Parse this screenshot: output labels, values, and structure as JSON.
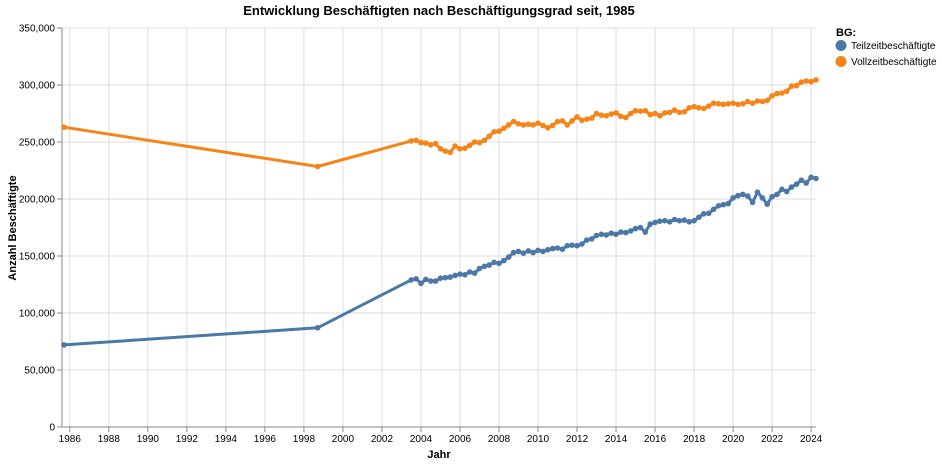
{
  "chart_data": {
    "type": "line",
    "title": "Entwicklung Beschäftigten nach Beschäftigungsgrad seit, 1985",
    "xlabel": "Jahr",
    "ylabel": "Anzahl Beschäftigte",
    "xlim": [
      1985.6,
      2024.25
    ],
    "ylim": [
      0,
      350000
    ],
    "x_ticks": [
      1986,
      1988,
      1990,
      1992,
      1994,
      1996,
      1998,
      2000,
      2002,
      2004,
      2006,
      2008,
      2010,
      2012,
      2014,
      2016,
      2018,
      2020,
      2022,
      2024
    ],
    "y_ticks": [
      0,
      50000,
      100000,
      150000,
      200000,
      250000,
      300000,
      350000
    ],
    "y_tick_labels": [
      "0",
      "50,000",
      "100,000",
      "150,000",
      "200,000",
      "250,000",
      "300,000",
      "350,000"
    ],
    "grid": true,
    "legend": {
      "title": "BG:",
      "position": "right"
    },
    "series": [
      {
        "name": "Teilzeitbeschäftigte",
        "color": "#4c78a8",
        "points": [
          [
            1985.7,
            72000
          ],
          [
            1998.7,
            87000
          ],
          [
            2003.5,
            129000
          ],
          [
            2003.75,
            130000
          ],
          [
            2004.0,
            126000
          ],
          [
            2004.25,
            129500
          ],
          [
            2004.5,
            128000
          ],
          [
            2004.75,
            128000
          ],
          [
            2005.0,
            130500
          ],
          [
            2005.25,
            131000
          ],
          [
            2005.5,
            131500
          ],
          [
            2005.75,
            133000
          ],
          [
            2006.0,
            134000
          ],
          [
            2006.25,
            133500
          ],
          [
            2006.5,
            136000
          ],
          [
            2006.75,
            135000
          ],
          [
            2007.0,
            139000
          ],
          [
            2007.25,
            141000
          ],
          [
            2007.5,
            142000
          ],
          [
            2007.75,
            144500
          ],
          [
            2008.0,
            143500
          ],
          [
            2008.25,
            146000
          ],
          [
            2008.5,
            149000
          ],
          [
            2008.75,
            153000
          ],
          [
            2009.0,
            154000
          ],
          [
            2009.25,
            152500
          ],
          [
            2009.5,
            154500
          ],
          [
            2009.75,
            153000
          ],
          [
            2010.0,
            155000
          ],
          [
            2010.25,
            154000
          ],
          [
            2010.5,
            155500
          ],
          [
            2010.75,
            156500
          ],
          [
            2011.0,
            157000
          ],
          [
            2011.25,
            156000
          ],
          [
            2011.5,
            159000
          ],
          [
            2011.75,
            159500
          ],
          [
            2012.0,
            159000
          ],
          [
            2012.25,
            160500
          ],
          [
            2012.5,
            164000
          ],
          [
            2012.75,
            165000
          ],
          [
            2013.0,
            168000
          ],
          [
            2013.25,
            169000
          ],
          [
            2013.5,
            168500
          ],
          [
            2013.75,
            170000
          ],
          [
            2014.0,
            169000
          ],
          [
            2014.25,
            171000
          ],
          [
            2014.5,
            170500
          ],
          [
            2014.75,
            172000
          ],
          [
            2015.0,
            174000
          ],
          [
            2015.25,
            175000
          ],
          [
            2015.5,
            171000
          ],
          [
            2015.75,
            178000
          ],
          [
            2016.0,
            179500
          ],
          [
            2016.25,
            180500
          ],
          [
            2016.5,
            181000
          ],
          [
            2016.75,
            180000
          ],
          [
            2017.0,
            182000
          ],
          [
            2017.25,
            181000
          ],
          [
            2017.5,
            181500
          ],
          [
            2017.75,
            180000
          ],
          [
            2018.0,
            181000
          ],
          [
            2018.25,
            184000
          ],
          [
            2018.5,
            187000
          ],
          [
            2018.75,
            187500
          ],
          [
            2019.0,
            191000
          ],
          [
            2019.25,
            194000
          ],
          [
            2019.5,
            195000
          ],
          [
            2019.75,
            196000
          ],
          [
            2020.0,
            201000
          ],
          [
            2020.25,
            203000
          ],
          [
            2020.5,
            204000
          ],
          [
            2020.75,
            202500
          ],
          [
            2021.0,
            197000
          ],
          [
            2021.25,
            206000
          ],
          [
            2021.5,
            201000
          ],
          [
            2021.75,
            195500
          ],
          [
            2022.0,
            202000
          ],
          [
            2022.25,
            204000
          ],
          [
            2022.5,
            208500
          ],
          [
            2022.75,
            206500
          ],
          [
            2023.0,
            210500
          ],
          [
            2023.25,
            213000
          ],
          [
            2023.5,
            216500
          ],
          [
            2023.75,
            214000
          ],
          [
            2024.0,
            219000
          ],
          [
            2024.25,
            218000
          ],
          [
            2024.5,
            221000
          ],
          [
            2024.75,
            216000
          ]
        ]
      },
      {
        "name": "Vollzeitbeschäftigte",
        "color": "#f58518",
        "points": [
          [
            1985.7,
            263000
          ],
          [
            1998.7,
            228500
          ],
          [
            2003.5,
            251000
          ],
          [
            2003.75,
            251500
          ],
          [
            2004.0,
            249500
          ],
          [
            2004.25,
            249000
          ],
          [
            2004.5,
            247500
          ],
          [
            2004.75,
            248500
          ],
          [
            2005.0,
            244000
          ],
          [
            2005.25,
            242000
          ],
          [
            2005.5,
            241000
          ],
          [
            2005.75,
            246500
          ],
          [
            2006.0,
            244000
          ],
          [
            2006.25,
            244500
          ],
          [
            2006.5,
            247000
          ],
          [
            2006.75,
            250000
          ],
          [
            2007.0,
            249500
          ],
          [
            2007.25,
            251500
          ],
          [
            2007.5,
            255000
          ],
          [
            2007.75,
            259000
          ],
          [
            2008.0,
            259500
          ],
          [
            2008.25,
            262000
          ],
          [
            2008.5,
            265000
          ],
          [
            2008.75,
            268000
          ],
          [
            2009.0,
            266000
          ],
          [
            2009.25,
            265000
          ],
          [
            2009.5,
            265500
          ],
          [
            2009.75,
            265000
          ],
          [
            2010.0,
            266500
          ],
          [
            2010.25,
            264500
          ],
          [
            2010.5,
            262500
          ],
          [
            2010.75,
            264500
          ],
          [
            2011.0,
            268000
          ],
          [
            2011.25,
            268500
          ],
          [
            2011.5,
            265000
          ],
          [
            2011.75,
            268500
          ],
          [
            2012.0,
            272000
          ],
          [
            2012.25,
            269000
          ],
          [
            2012.5,
            270000
          ],
          [
            2012.75,
            271000
          ],
          [
            2013.0,
            275000
          ],
          [
            2013.25,
            273500
          ],
          [
            2013.5,
            273000
          ],
          [
            2013.75,
            274500
          ],
          [
            2014.0,
            275500
          ],
          [
            2014.25,
            272500
          ],
          [
            2014.5,
            271500
          ],
          [
            2014.75,
            275000
          ],
          [
            2015.0,
            277500
          ],
          [
            2015.25,
            277000
          ],
          [
            2015.5,
            277500
          ],
          [
            2015.75,
            274000
          ],
          [
            2016.0,
            275000
          ],
          [
            2016.25,
            273000
          ],
          [
            2016.5,
            275500
          ],
          [
            2016.75,
            276000
          ],
          [
            2017.0,
            278000
          ],
          [
            2017.25,
            276000
          ],
          [
            2017.5,
            276500
          ],
          [
            2017.75,
            280000
          ],
          [
            2018.0,
            281000
          ],
          [
            2018.25,
            280000
          ],
          [
            2018.5,
            279500
          ],
          [
            2018.75,
            281500
          ],
          [
            2019.0,
            284000
          ],
          [
            2019.25,
            283500
          ],
          [
            2019.5,
            283000
          ],
          [
            2019.75,
            283500
          ],
          [
            2020.0,
            284000
          ],
          [
            2020.25,
            283000
          ],
          [
            2020.5,
            283500
          ],
          [
            2020.75,
            285500
          ],
          [
            2021.0,
            284000
          ],
          [
            2021.25,
            286000
          ],
          [
            2021.5,
            285500
          ],
          [
            2021.75,
            286500
          ],
          [
            2022.0,
            290500
          ],
          [
            2022.25,
            292500
          ],
          [
            2022.5,
            293000
          ],
          [
            2022.75,
            294500
          ],
          [
            2023.0,
            299000
          ],
          [
            2023.25,
            299500
          ],
          [
            2023.5,
            302500
          ],
          [
            2023.75,
            303500
          ],
          [
            2024.0,
            303000
          ],
          [
            2024.25,
            304500
          ],
          [
            2024.5,
            304000
          ],
          [
            2024.75,
            305000
          ]
        ]
      }
    ]
  }
}
